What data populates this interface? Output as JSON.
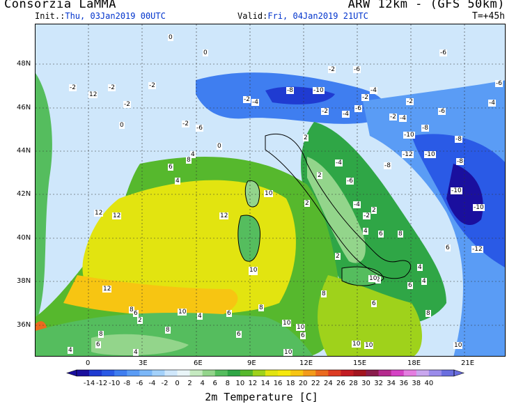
{
  "header": {
    "provider": "Consorzia LaMMA",
    "model": "ARW 12km - (GFS 50km)",
    "init_label": "Init.:",
    "init_value": "Thu, 03Jan2019 00UTC",
    "valid_label": "Valid:",
    "valid_value": "Fri, 04Jan2019 21UTC",
    "lead_time": "T=+45h"
  },
  "axes": {
    "lat_labels": [
      "48N",
      "46N",
      "44N",
      "42N",
      "40N",
      "38N",
      "36N"
    ],
    "lon_labels": [
      "0",
      "3E",
      "6E",
      "9E",
      "12E",
      "15E",
      "18E",
      "21E"
    ]
  },
  "colorbar": {
    "title": "2m Temperature [C]",
    "values": [
      "-14",
      "-12",
      "-10",
      "-8",
      "-6",
      "-4",
      "-2",
      "0",
      "2",
      "4",
      "6",
      "8",
      "10",
      "12",
      "14",
      "16",
      "18",
      "20",
      "22",
      "24",
      "26",
      "28",
      "30",
      "32",
      "34",
      "36",
      "38",
      "40"
    ],
    "colors": [
      "#1a0f9e",
      "#1f3bd1",
      "#2a5ae6",
      "#3f7ef0",
      "#5a9cf5",
      "#7bb7f8",
      "#a3d1fa",
      "#cfe7fb",
      "#e9f5f8",
      "#c5e9c0",
      "#93d58b",
      "#55bd5e",
      "#2fa646",
      "#56b82d",
      "#9fd21b",
      "#e2e410",
      "#f6e80c",
      "#f7c512",
      "#f39b1a",
      "#ea6a1f",
      "#dd3b22",
      "#c21b22",
      "#a3151f",
      "#8a1d4c",
      "#b52a8e",
      "#d542c4",
      "#e47de0",
      "#c9a6ee",
      "#9a8bea",
      "#6a6edf"
    ]
  },
  "map_labels": [
    {
      "t": "0"
    },
    {
      "t": "0"
    },
    {
      "t": "-2"
    },
    {
      "t": "-2"
    },
    {
      "t": "-2"
    },
    {
      "t": "-2"
    },
    {
      "t": "-4"
    },
    {
      "t": "-2"
    },
    {
      "t": "-6"
    },
    {
      "t": "-4"
    },
    {
      "t": "-8"
    },
    {
      "t": "-10"
    },
    {
      "t": "-6"
    },
    {
      "t": "-4"
    },
    {
      "t": "-2"
    },
    {
      "t": "-6"
    },
    {
      "t": "-6"
    },
    {
      "t": "-4"
    },
    {
      "t": "-2"
    },
    {
      "t": "-2"
    },
    {
      "t": "-4"
    },
    {
      "t": "-6"
    },
    {
      "t": "-8"
    },
    {
      "t": "-10"
    },
    {
      "t": "-8"
    },
    {
      "t": "-12"
    },
    {
      "t": "-10"
    },
    {
      "t": "-8"
    },
    {
      "t": "-10"
    },
    {
      "t": "-12"
    },
    {
      "t": "-10"
    },
    {
      "t": "-6"
    },
    {
      "t": "-4"
    },
    {
      "t": "-2"
    },
    {
      "t": "0"
    },
    {
      "t": "2"
    },
    {
      "t": "4"
    },
    {
      "t": "2"
    },
    {
      "t": "10"
    },
    {
      "t": "12"
    },
    {
      "t": "12"
    },
    {
      "t": "10"
    },
    {
      "t": "8"
    },
    {
      "t": "10"
    },
    {
      "t": "12"
    },
    {
      "t": "10"
    },
    {
      "t": "12"
    },
    {
      "t": "8"
    },
    {
      "t": "6"
    },
    {
      "t": "4"
    },
    {
      "t": "2"
    },
    {
      "t": "4"
    },
    {
      "t": "6"
    },
    {
      "t": "8"
    },
    {
      "t": "6"
    },
    {
      "t": "10"
    },
    {
      "t": "6"
    },
    {
      "t": "4"
    },
    {
      "t": "10"
    },
    {
      "t": "8"
    },
    {
      "t": "10"
    },
    {
      "t": "6"
    },
    {
      "t": "4"
    },
    {
      "t": "2"
    },
    {
      "t": "6"
    },
    {
      "t": "8"
    },
    {
      "t": "10"
    },
    {
      "t": "12"
    },
    {
      "t": "8"
    },
    {
      "t": "6"
    },
    {
      "t": "10"
    },
    {
      "t": "10"
    },
    {
      "t": "4"
    },
    {
      "t": "2"
    },
    {
      "t": "4"
    },
    {
      "t": "6"
    },
    {
      "t": "8"
    },
    {
      "t": "6"
    },
    {
      "t": "2"
    },
    {
      "t": "0"
    },
    {
      "t": "-2"
    },
    {
      "t": "-2"
    },
    {
      "t": "-6"
    },
    {
      "t": "-8"
    },
    {
      "t": "-4"
    },
    {
      "t": "-2"
    },
    {
      "t": "2"
    },
    {
      "t": "4"
    },
    {
      "t": "6"
    },
    {
      "t": "8"
    },
    {
      "t": "10"
    }
  ]
}
